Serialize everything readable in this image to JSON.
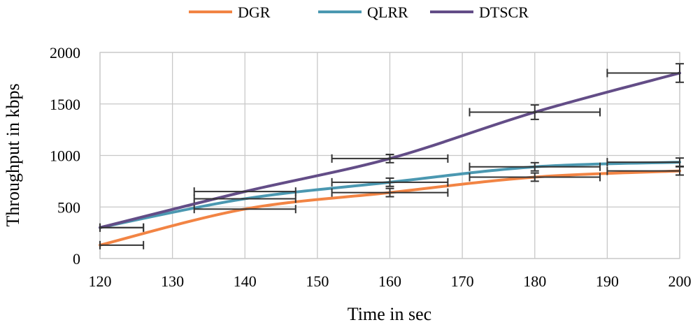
{
  "chart_data": {
    "type": "line",
    "title": "",
    "xlabel": "Time in sec",
    "ylabel": "Throughput in kbps",
    "xlim": [
      120,
      200
    ],
    "ylim": [
      0,
      2000
    ],
    "x_ticks": [
      120,
      130,
      140,
      150,
      160,
      170,
      180,
      190,
      200
    ],
    "y_ticks": [
      0,
      500,
      1000,
      1500,
      2000
    ],
    "grid": true,
    "legend_position": "top-center",
    "series": [
      {
        "name": "DGR",
        "color": "#f28444",
        "points": [
          [
            120,
            130
          ],
          [
            140,
            480
          ],
          [
            160,
            640
          ],
          [
            180,
            790
          ],
          [
            200,
            850
          ]
        ],
        "error_bars": [
          {
            "x": 120,
            "y": 130,
            "x_minus": 0,
            "x_plus": 6
          },
          {
            "x": 140,
            "y": 480,
            "x_minus": 7,
            "x_plus": 7
          },
          {
            "x": 160,
            "y": 640,
            "x_minus": 8,
            "x_plus": 8,
            "y_minus": 40,
            "y_plus": 40
          },
          {
            "x": 180,
            "y": 790,
            "x_minus": 9,
            "x_plus": 9,
            "y_minus": 40,
            "y_plus": 40
          },
          {
            "x": 200,
            "y": 850,
            "x_minus": 10,
            "x_plus": 0,
            "y_minus": 40,
            "y_plus": 40
          }
        ]
      },
      {
        "name": "QLRR",
        "color": "#4b98b1",
        "points": [
          [
            120,
            300
          ],
          [
            140,
            580
          ],
          [
            160,
            740
          ],
          [
            180,
            890
          ],
          [
            200,
            935
          ]
        ],
        "error_bars": [
          {
            "x": 120,
            "y": 300,
            "x_minus": 0,
            "x_plus": 6
          },
          {
            "x": 140,
            "y": 580,
            "x_minus": 7,
            "x_plus": 7
          },
          {
            "x": 160,
            "y": 740,
            "x_minus": 8,
            "x_plus": 8,
            "y_minus": 40,
            "y_plus": 40
          },
          {
            "x": 180,
            "y": 890,
            "x_minus": 9,
            "x_plus": 9,
            "y_minus": 40,
            "y_plus": 40
          },
          {
            "x": 200,
            "y": 935,
            "x_minus": 10,
            "x_plus": 0,
            "y_minus": 40,
            "y_plus": 40
          }
        ]
      },
      {
        "name": "DTSCR",
        "color": "#634d87",
        "points": [
          [
            120,
            300
          ],
          [
            140,
            650
          ],
          [
            160,
            970
          ],
          [
            180,
            1420
          ],
          [
            200,
            1800
          ]
        ],
        "error_bars": [
          {
            "x": 120,
            "y": 300,
            "x_minus": 0,
            "x_plus": 6
          },
          {
            "x": 140,
            "y": 650,
            "x_minus": 7,
            "x_plus": 7
          },
          {
            "x": 160,
            "y": 970,
            "x_minus": 8,
            "x_plus": 8,
            "y_minus": 40,
            "y_plus": 40
          },
          {
            "x": 180,
            "y": 1420,
            "x_minus": 9,
            "x_plus": 9,
            "y_minus": 70,
            "y_plus": 70
          },
          {
            "x": 200,
            "y": 1800,
            "x_minus": 10,
            "x_plus": 0,
            "y_minus": 90,
            "y_plus": 90
          }
        ]
      }
    ]
  }
}
